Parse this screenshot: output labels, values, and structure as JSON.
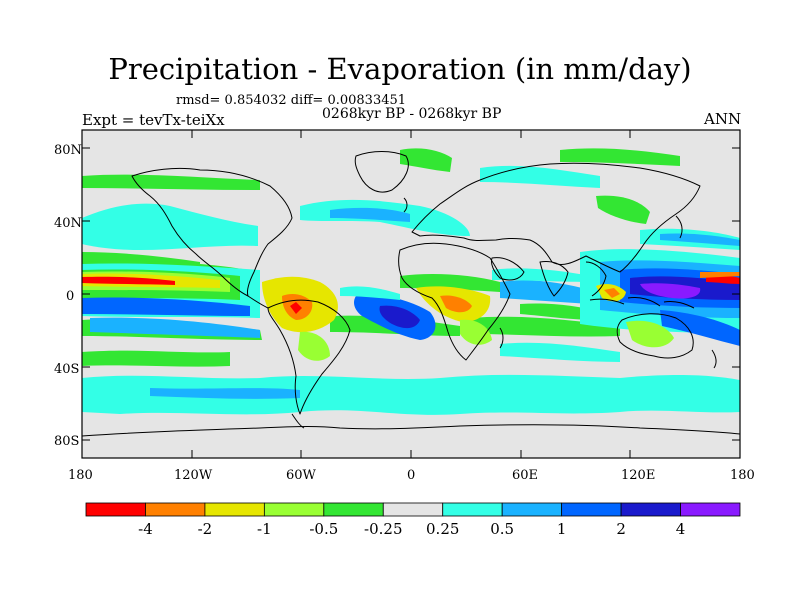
{
  "title": "Precipitation - Evaporation (in mm/day)",
  "stats": "rmsd= 0.854032 diff= 0.00833451",
  "experiment": "Expt = tevTx-teiXx",
  "period": "0268kyr BP - 0268kyr BP",
  "season": "ANN",
  "map": {
    "y_ticks": [
      {
        "label": "80N",
        "lat": 80
      },
      {
        "label": "40N",
        "lat": 40
      },
      {
        "label": "0",
        "lat": 0
      },
      {
        "label": "40S",
        "lat": -40
      },
      {
        "label": "80S",
        "lat": -80
      }
    ],
    "x_ticks": [
      {
        "label": "180",
        "lon": -180
      },
      {
        "label": "120W",
        "lon": -120
      },
      {
        "label": "60W",
        "lon": -60
      },
      {
        "label": "0",
        "lon": 0
      },
      {
        "label": "60E",
        "lon": 60
      },
      {
        "label": "120E",
        "lon": 120
      },
      {
        "label": "180",
        "lon": 180
      }
    ],
    "lon_range": [
      -180,
      180
    ],
    "lat_range": [
      -90,
      90
    ]
  },
  "colorbar": {
    "colors": [
      "#ff0000",
      "#ff8000",
      "#e6e600",
      "#99ff33",
      "#33e633",
      "#e5e5e5",
      "#33ffe6",
      "#1ab2ff",
      "#0066ff",
      "#1a1acc",
      "#8a1aff"
    ],
    "labels": [
      "-4",
      "-2",
      "-1",
      "-0.5",
      "-0.25",
      "0.25",
      "0.5",
      "1",
      "2",
      "4"
    ]
  }
}
